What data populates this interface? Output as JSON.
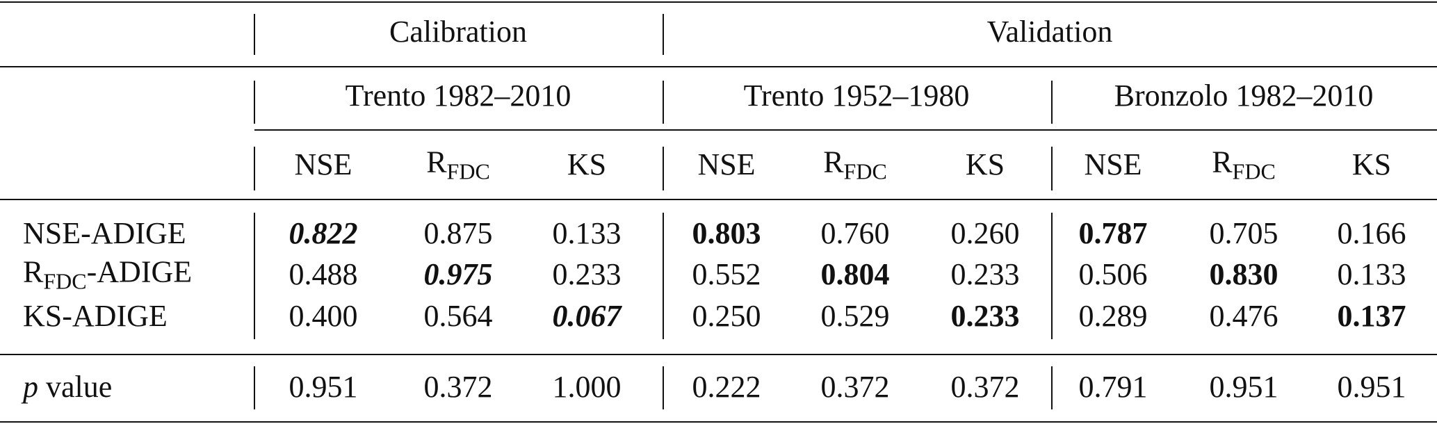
{
  "table": {
    "group_headers": [
      "Calibration",
      "Validation"
    ],
    "period_headers": [
      "Trento 1982–2010",
      "Trento 1952–1980",
      "Bronzolo 1982–2010"
    ],
    "metric_headers": [
      [
        {
          "text": "NSE"
        }
      ],
      [
        {
          "text": "R"
        },
        {
          "text": "FDC",
          "style": "sub"
        }
      ],
      [
        {
          "text": "KS"
        }
      ],
      [
        {
          "text": "NSE"
        }
      ],
      [
        {
          "text": "R"
        },
        {
          "text": "FDC",
          "style": "sub"
        }
      ],
      [
        {
          "text": "KS"
        }
      ],
      [
        {
          "text": "NSE"
        }
      ],
      [
        {
          "text": "R"
        },
        {
          "text": "FDC",
          "style": "sub"
        }
      ],
      [
        {
          "text": "KS"
        }
      ]
    ],
    "rows": [
      {
        "label": [
          {
            "text": "NSE-ADIGE"
          }
        ],
        "cells": [
          {
            "text": "0.822",
            "style": "bold-italic"
          },
          {
            "text": "0.875"
          },
          {
            "text": "0.133"
          },
          {
            "text": "0.803",
            "style": "bold"
          },
          {
            "text": "0.760"
          },
          {
            "text": "0.260"
          },
          {
            "text": "0.787",
            "style": "bold"
          },
          {
            "text": "0.705"
          },
          {
            "text": "0.166"
          }
        ]
      },
      {
        "label": [
          {
            "text": "R"
          },
          {
            "text": "FDC",
            "style": "sub"
          },
          {
            "text": "-ADIGE"
          }
        ],
        "cells": [
          {
            "text": "0.488"
          },
          {
            "text": "0.975",
            "style": "bold-italic"
          },
          {
            "text": "0.233"
          },
          {
            "text": "0.552"
          },
          {
            "text": "0.804",
            "style": "bold"
          },
          {
            "text": "0.233"
          },
          {
            "text": "0.506"
          },
          {
            "text": "0.830",
            "style": "bold"
          },
          {
            "text": "0.133"
          }
        ]
      },
      {
        "label": [
          {
            "text": "KS-ADIGE"
          }
        ],
        "cells": [
          {
            "text": "0.400"
          },
          {
            "text": "0.564"
          },
          {
            "text": "0.067",
            "style": "bold-italic"
          },
          {
            "text": "0.250"
          },
          {
            "text": "0.529"
          },
          {
            "text": "0.233",
            "style": "bold"
          },
          {
            "text": "0.289"
          },
          {
            "text": "0.476"
          },
          {
            "text": "0.137",
            "style": "bold"
          }
        ]
      },
      {
        "label": [
          {
            "text": "p",
            "style": "italic"
          },
          {
            "text": " value"
          }
        ],
        "cells": [
          {
            "text": "0.951"
          },
          {
            "text": "0.372"
          },
          {
            "text": "1.000"
          },
          {
            "text": "0.222"
          },
          {
            "text": "0.372"
          },
          {
            "text": "0.372"
          },
          {
            "text": "0.791"
          },
          {
            "text": "0.951"
          },
          {
            "text": "0.951"
          }
        ]
      }
    ]
  }
}
